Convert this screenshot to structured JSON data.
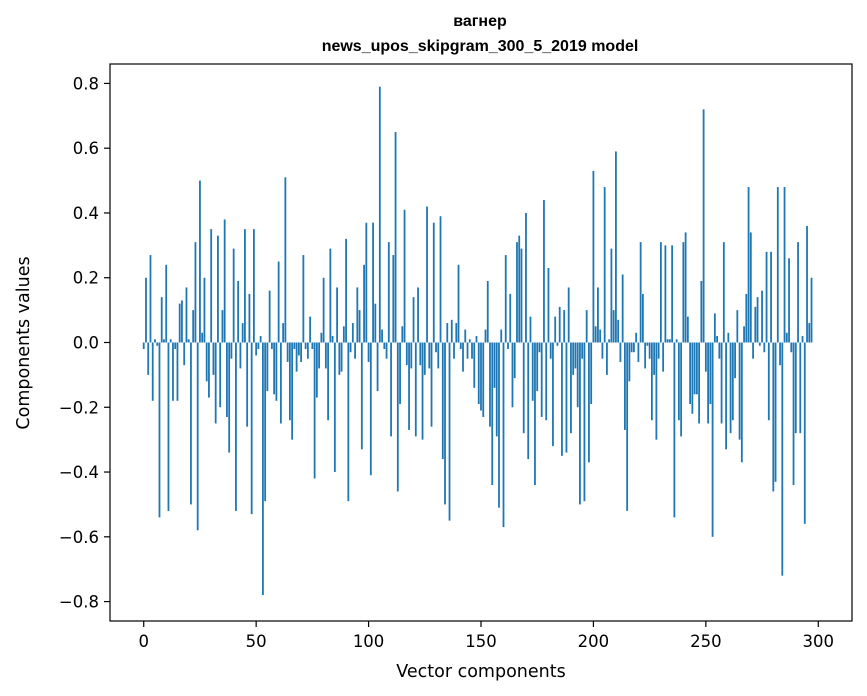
{
  "chart_data": {
    "type": "bar",
    "title_line1": "вагнер",
    "title_line2": "news_upos_skipgram_300_5_2019 model",
    "xlabel": "Vector components",
    "ylabel": "Components values",
    "xlim": [
      -15,
      315
    ],
    "ylim": [
      -0.86,
      0.86
    ],
    "x_ticks": [
      0,
      50,
      100,
      150,
      200,
      250,
      300
    ],
    "x_tick_labels": [
      "0",
      "50",
      "100",
      "150",
      "200",
      "250",
      "300"
    ],
    "y_ticks": [
      -0.8,
      -0.6,
      -0.4,
      -0.2,
      0.0,
      0.2,
      0.4,
      0.6,
      0.8
    ],
    "y_tick_labels": [
      "−0.8",
      "−0.6",
      "−0.4",
      "−0.2",
      "0.0",
      "0.2",
      "0.4",
      "0.6",
      "0.8"
    ],
    "bar_color": "#1f77b4",
    "grid": false,
    "values": [
      -0.02,
      0.2,
      -0.1,
      0.27,
      -0.18,
      0.01,
      -0.01,
      -0.54,
      0.14,
      0.01,
      0.24,
      -0.52,
      0.01,
      -0.18,
      -0.02,
      -0.18,
      0.12,
      0.13,
      -0.07,
      0.17,
      0.01,
      -0.5,
      0.1,
      0.31,
      -0.58,
      0.5,
      0.03,
      0.2,
      -0.12,
      -0.17,
      0.35,
      -0.1,
      -0.25,
      0.33,
      -0.2,
      0.1,
      0.38,
      -0.23,
      -0.34,
      -0.05,
      0.29,
      -0.52,
      0.19,
      -0.08,
      0.06,
      0.35,
      -0.26,
      0.15,
      -0.53,
      0.35,
      -0.04,
      -0.02,
      0.02,
      -0.78,
      -0.49,
      -0.15,
      0.16,
      -0.02,
      -0.16,
      -0.18,
      0.25,
      -0.25,
      0.06,
      0.51,
      -0.06,
      -0.24,
      -0.3,
      -0.02,
      -0.09,
      -0.04,
      -0.06,
      0.27,
      -0.02,
      -0.05,
      0.08,
      -0.02,
      -0.42,
      -0.17,
      -0.08,
      0.03,
      0.2,
      -0.08,
      -0.24,
      0.29,
      0.02,
      -0.4,
      0.17,
      -0.1,
      -0.09,
      0.05,
      0.32,
      -0.49,
      -0.03,
      0.06,
      -0.05,
      0.17,
      0.1,
      -0.33,
      0.24,
      0.37,
      -0.06,
      -0.41,
      0.37,
      0.12,
      -0.15,
      0.79,
      0.04,
      -0.02,
      -0.05,
      0.31,
      -0.29,
      0.27,
      0.65,
      -0.46,
      -0.19,
      0.05,
      0.41,
      -0.07,
      -0.27,
      -0.08,
      0.14,
      -0.29,
      0.17,
      -0.07,
      -0.3,
      -0.1,
      0.42,
      -0.08,
      -0.26,
      0.37,
      -0.03,
      -0.08,
      0.39,
      -0.36,
      -0.5,
      0.06,
      -0.55,
      0.07,
      -0.05,
      0.06,
      0.24,
      -0.02,
      -0.09,
      0.04,
      -0.05,
      0.01,
      -0.05,
      -0.14,
      0.02,
      -0.19,
      -0.21,
      -0.23,
      0.04,
      0.19,
      -0.26,
      -0.44,
      -0.14,
      -0.29,
      -0.51,
      0.04,
      -0.57,
      0.27,
      -0.02,
      0.15,
      -0.2,
      -0.11,
      0.31,
      0.33,
      0.29,
      -0.28,
      0.4,
      -0.36,
      0.08,
      -0.18,
      -0.44,
      -0.15,
      -0.03,
      -0.23,
      0.44,
      -0.24,
      0.23,
      -0.05,
      -0.32,
      0.08,
      -0.01,
      0.11,
      -0.35,
      0.1,
      -0.34,
      0.17,
      -0.28,
      -0.1,
      -0.08,
      -0.2,
      -0.5,
      -0.05,
      -0.49,
      0.1,
      -0.37,
      -0.19,
      0.53,
      0.05,
      0.17,
      0.04,
      -0.05,
      0.48,
      -0.1,
      0.01,
      0.29,
      0.1,
      0.59,
      0.07,
      -0.06,
      0.21,
      -0.27,
      -0.52,
      -0.12,
      -0.03,
      -0.03,
      0.03,
      -0.06,
      0.31,
      0.15,
      -0.08,
      -0.01,
      -0.05,
      -0.24,
      -0.1,
      -0.3,
      -0.05,
      0.31,
      -0.09,
      0.3,
      0.01,
      0.01,
      0.3,
      -0.54,
      0.01,
      -0.24,
      -0.29,
      0.31,
      0.34,
      0.08,
      -0.19,
      -0.22,
      -0.16,
      -0.16,
      -0.25,
      0.19,
      0.72,
      -0.09,
      -0.25,
      -0.19,
      -0.6,
      0.09,
      0.02,
      -0.05,
      -0.25,
      0.31,
      -0.33,
      0.03,
      -0.28,
      -0.24,
      -0.11,
      0.1,
      -0.3,
      -0.37,
      0.05,
      0.15,
      0.48,
      0.34,
      -0.05,
      0.11,
      0.14,
      -0.01,
      0.16,
      -0.03,
      0.28,
      -0.24,
      0.28,
      -0.46,
      -0.43,
      0.48,
      -0.07,
      -0.72,
      0.48,
      0.03,
      0.26,
      -0.03,
      -0.44,
      -0.28,
      0.31,
      -0.28,
      0.02,
      -0.56,
      0.36,
      0.06,
      0.2
    ]
  }
}
